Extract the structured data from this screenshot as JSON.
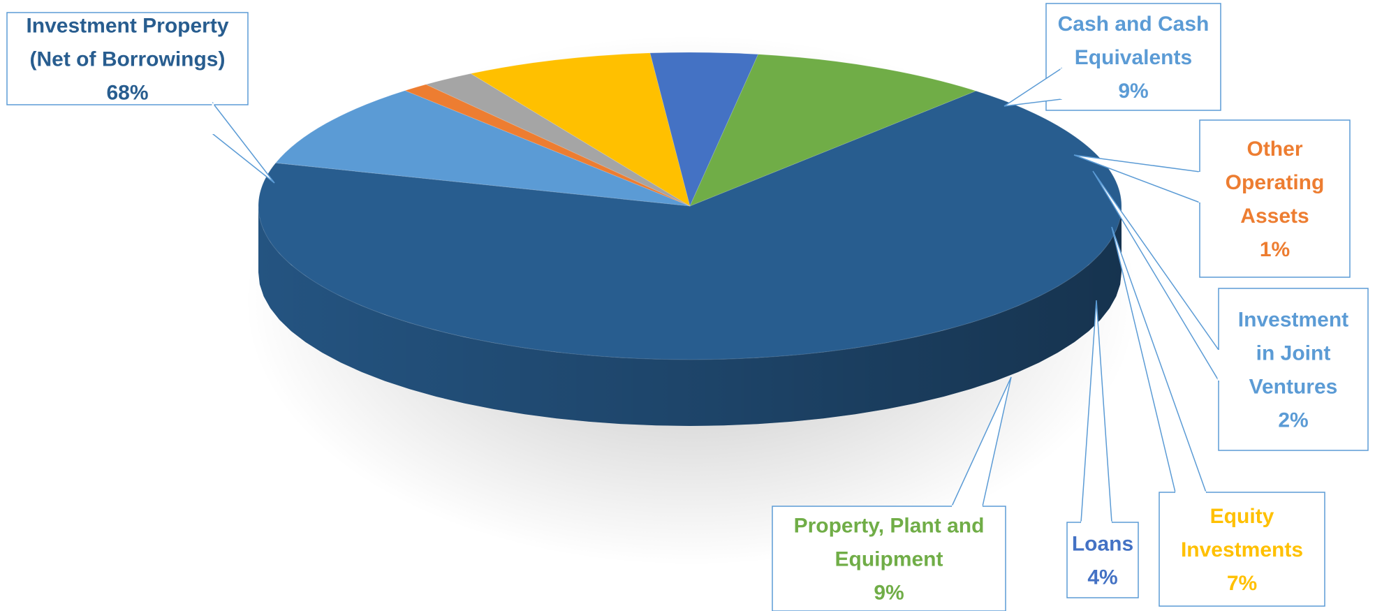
{
  "chart_data": {
    "type": "pie",
    "style": "3d",
    "title": "",
    "slices": [
      {
        "label_lines": [
          "Investment Property",
          "(Net of Borrowings)"
        ],
        "value_label": "68%",
        "value": 68,
        "color": "#285D8F",
        "text_color": "#285D8F"
      },
      {
        "label_lines": [
          "Cash and Cash",
          "Equivalents"
        ],
        "value_label": "9%",
        "value": 9,
        "color": "#5B9BD5",
        "text_color": "#5B9BD5"
      },
      {
        "label_lines": [
          "Other",
          "Operating",
          "Assets"
        ],
        "value_label": "1%",
        "value": 1,
        "color": "#ED7D31",
        "text_color": "#ED7D31"
      },
      {
        "label_lines": [
          "Investment",
          "in Joint",
          "Ventures"
        ],
        "value_label": "2%",
        "value": 2,
        "color": "#A5A5A5",
        "text_color": "#5B9BD5"
      },
      {
        "label_lines": [
          "Equity",
          "Investments"
        ],
        "value_label": "7%",
        "value": 7,
        "color": "#FFC000",
        "text_color": "#FFC000"
      },
      {
        "label_lines": [
          "Loans"
        ],
        "value_label": "4%",
        "value": 4,
        "color": "#4472C4",
        "text_color": "#4472C4"
      },
      {
        "label_lines": [
          "Property, Plant and",
          "Equipment"
        ],
        "value_label": "9%",
        "value": 9,
        "color": "#70AD47",
        "text_color": "#70AD47"
      }
    ]
  }
}
